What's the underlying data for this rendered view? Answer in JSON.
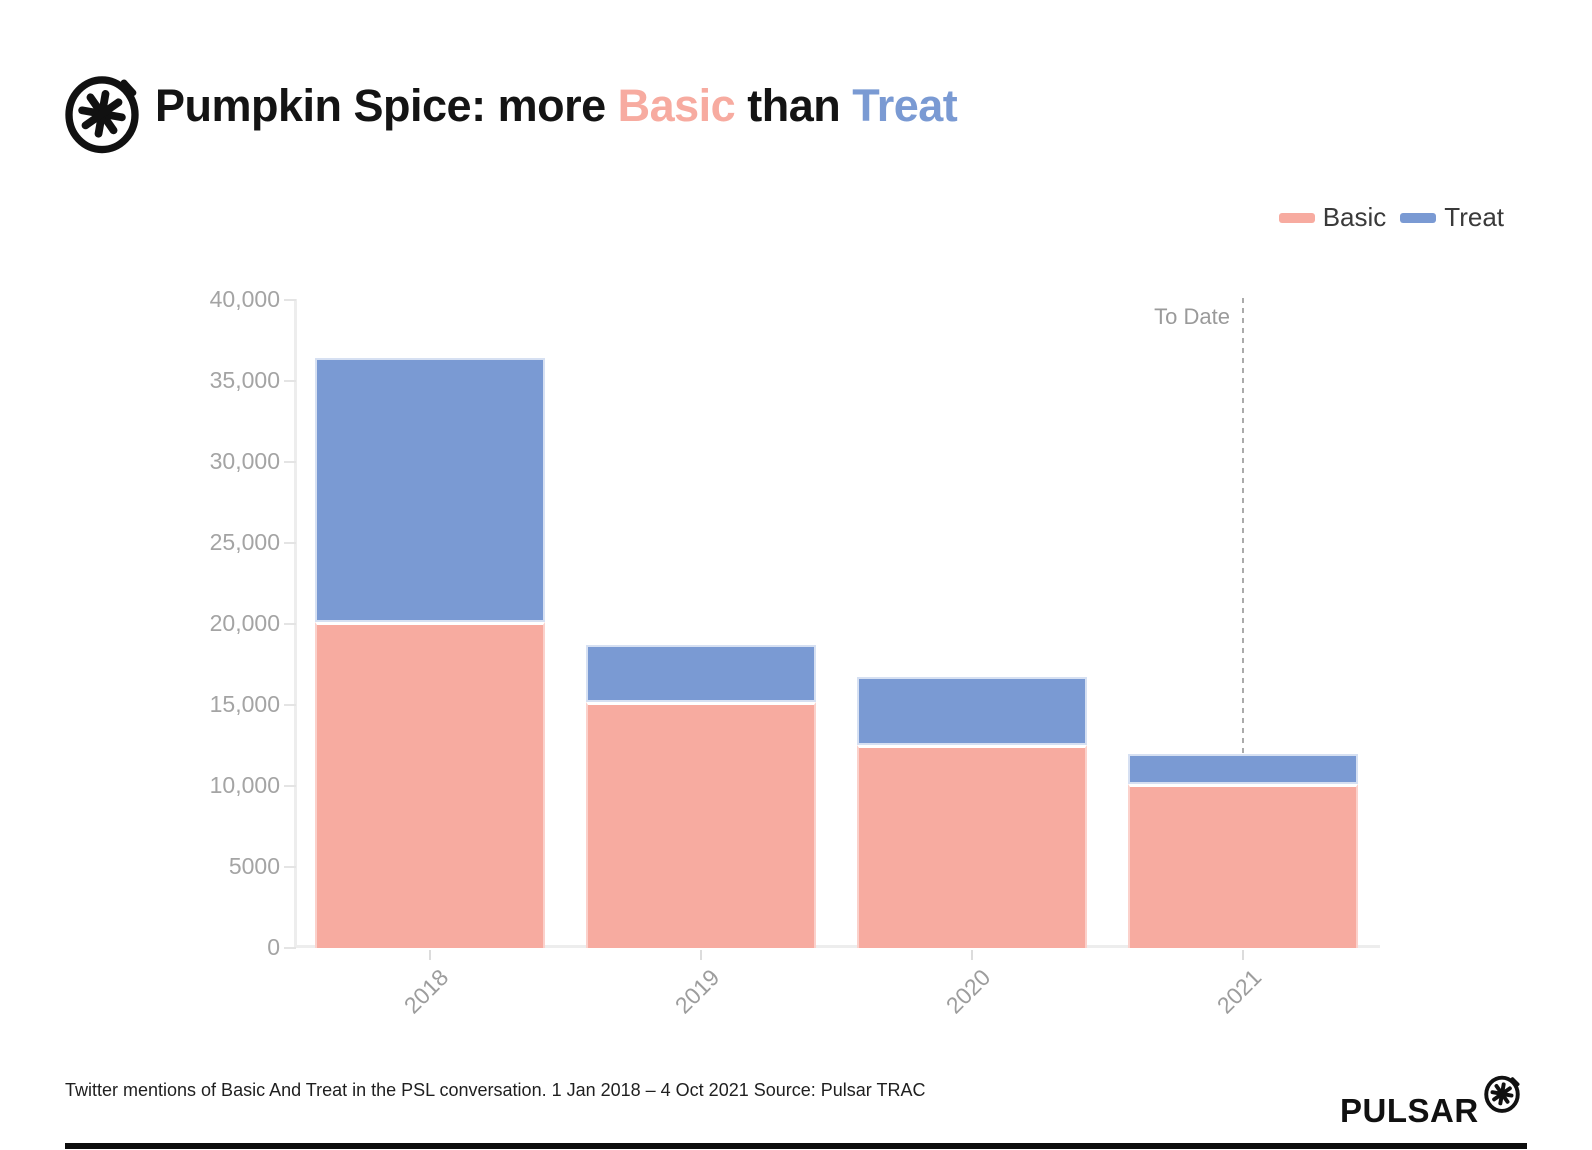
{
  "header": {
    "title_prefix": "Pumpkin Spice: more ",
    "title_basic": "Basic",
    "title_mid": " than ",
    "title_treat": "Treat"
  },
  "colors": {
    "basic": "#f7aba0",
    "treat": "#7a9ad3",
    "axis_text": "#9d9d9d",
    "annotation_text": "#9a9a9a",
    "footer_text": "#1f1f1f",
    "brand_black": "#111111"
  },
  "legend": {
    "items": [
      {
        "label": "Basic",
        "color_key": "basic"
      },
      {
        "label": "Treat",
        "color_key": "treat"
      }
    ]
  },
  "annotation": {
    "to_date_label": "To Date"
  },
  "footer": {
    "caption": "Twitter mentions of Basic And Treat in the PSL conversation. 1 Jan 2018 – 4 Oct 2021 Source: Pulsar TRAC",
    "brand": "PULSAR"
  },
  "chart_data": {
    "type": "bar",
    "stacked": true,
    "title": "Pumpkin Spice: more Basic than Treat",
    "categories": [
      "2018",
      "2019",
      "2020",
      "2021"
    ],
    "series": [
      {
        "name": "Basic",
        "color_key": "basic",
        "values": [
          20100,
          15200,
          12550,
          10150
        ]
      },
      {
        "name": "Treat",
        "color_key": "treat",
        "values": [
          16300,
          3500,
          4200,
          1800
        ]
      }
    ],
    "totals": [
      36400,
      18700,
      16750,
      11950
    ],
    "xlabel": "",
    "ylabel": "",
    "ylim": [
      0,
      40000
    ],
    "ytick_step": 5000,
    "ytick_labels": [
      "0",
      "5000",
      "10,000",
      "15,000",
      "20,000",
      "25,000",
      "30,000",
      "35,000",
      "40,000"
    ],
    "x_tick_label_rotation": -45,
    "grid": false,
    "legend_position": "top-right",
    "annotation_line": {
      "at_category": "2021",
      "label": "To Date",
      "style": "dashed-vertical"
    }
  }
}
